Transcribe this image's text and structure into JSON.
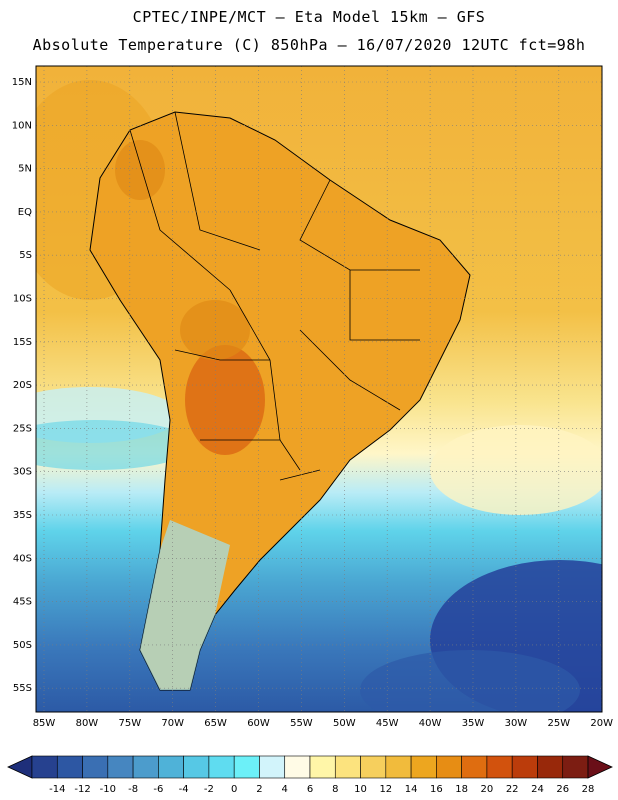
{
  "header": {
    "line1": "CPTEC/INPE/MCT —  Eta Model 15km — GFS",
    "line2": "Absolute Temperature (C) 850hPa — 16/07/2020 12UTC fct=98h"
  },
  "axes": {
    "lat_labels": [
      "15N",
      "10N",
      "5N",
      "EQ",
      "5S",
      "10S",
      "15S",
      "20S",
      "25S",
      "30S",
      "35S",
      "40S",
      "45S",
      "50S",
      "55S"
    ],
    "lon_labels": [
      "85W",
      "80W",
      "75W",
      "70W",
      "65W",
      "60W",
      "55W",
      "50W",
      "45W",
      "40W",
      "35W",
      "30W",
      "25W",
      "20W"
    ]
  },
  "colorbar": {
    "labels": [
      "-14",
      "-12",
      "-10",
      "-8",
      "-6",
      "-4",
      "-2",
      "0",
      "2",
      "4",
      "6",
      "8",
      "10",
      "12",
      "14",
      "16",
      "18",
      "20",
      "22",
      "24",
      "26",
      "28"
    ],
    "colors": [
      "#26418f",
      "#2d57a3",
      "#3a6fb3",
      "#4686c0",
      "#4c9ccc",
      "#4fb2d8",
      "#56c8e5",
      "#5fdcf0",
      "#6cf0f8",
      "#d2f4fb",
      "#fffbe6",
      "#fff6a8",
      "#fce37e",
      "#f6cf5d",
      "#f1bb3c",
      "#eda61f",
      "#e78d14",
      "#df6d10",
      "#d2520d",
      "#bb3c0b",
      "#98280a",
      "#7c1d12"
    ],
    "under_color": "#1e2f7a",
    "over_color": "#6a0f18"
  }
}
